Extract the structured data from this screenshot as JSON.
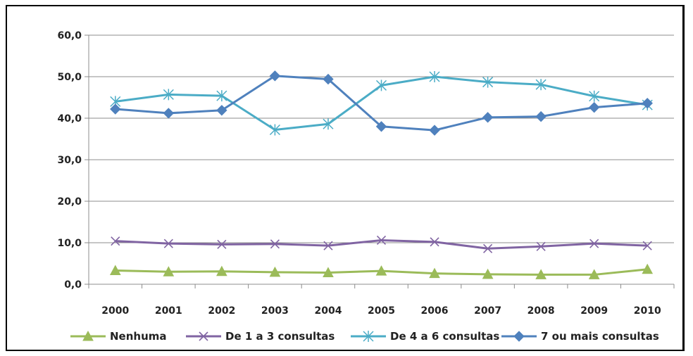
{
  "chart_data": {
    "type": "line",
    "title": "",
    "xlabel": "",
    "ylabel": "",
    "ylim": [
      0,
      60
    ],
    "yticks": [
      "0,0",
      "10,0",
      "20,0",
      "30,0",
      "40,0",
      "50,0",
      "60,0"
    ],
    "categories": [
      "2000",
      "2001",
      "2002",
      "2003",
      "2004",
      "2005",
      "2006",
      "2007",
      "2008",
      "2009",
      "2010"
    ],
    "grid": "horizontal",
    "legend_position": "bottom",
    "series": [
      {
        "name": "Nenhuma",
        "color": "#9BBB59",
        "marker": "triangle",
        "values": [
          3.3,
          3.0,
          3.1,
          2.9,
          2.8,
          3.2,
          2.6,
          2.4,
          2.3,
          2.3,
          3.6
        ]
      },
      {
        "name": "De 1 a 3 consultas",
        "color": "#8064A2",
        "marker": "x",
        "values": [
          10.4,
          9.8,
          9.6,
          9.7,
          9.3,
          10.6,
          10.2,
          8.6,
          9.1,
          9.8,
          9.3
        ]
      },
      {
        "name": "De 4 a 6 consultas",
        "color": "#4BACC6",
        "marker": "star",
        "values": [
          44.0,
          45.7,
          45.4,
          37.2,
          38.6,
          47.9,
          50.0,
          48.7,
          48.1,
          45.3,
          43.2
        ]
      },
      {
        "name": "7 ou mais consultas",
        "color": "#4F81BD",
        "marker": "diamond",
        "values": [
          42.2,
          41.2,
          41.9,
          50.2,
          49.4,
          38.0,
          37.1,
          40.2,
          40.4,
          42.6,
          43.6
        ]
      }
    ]
  }
}
